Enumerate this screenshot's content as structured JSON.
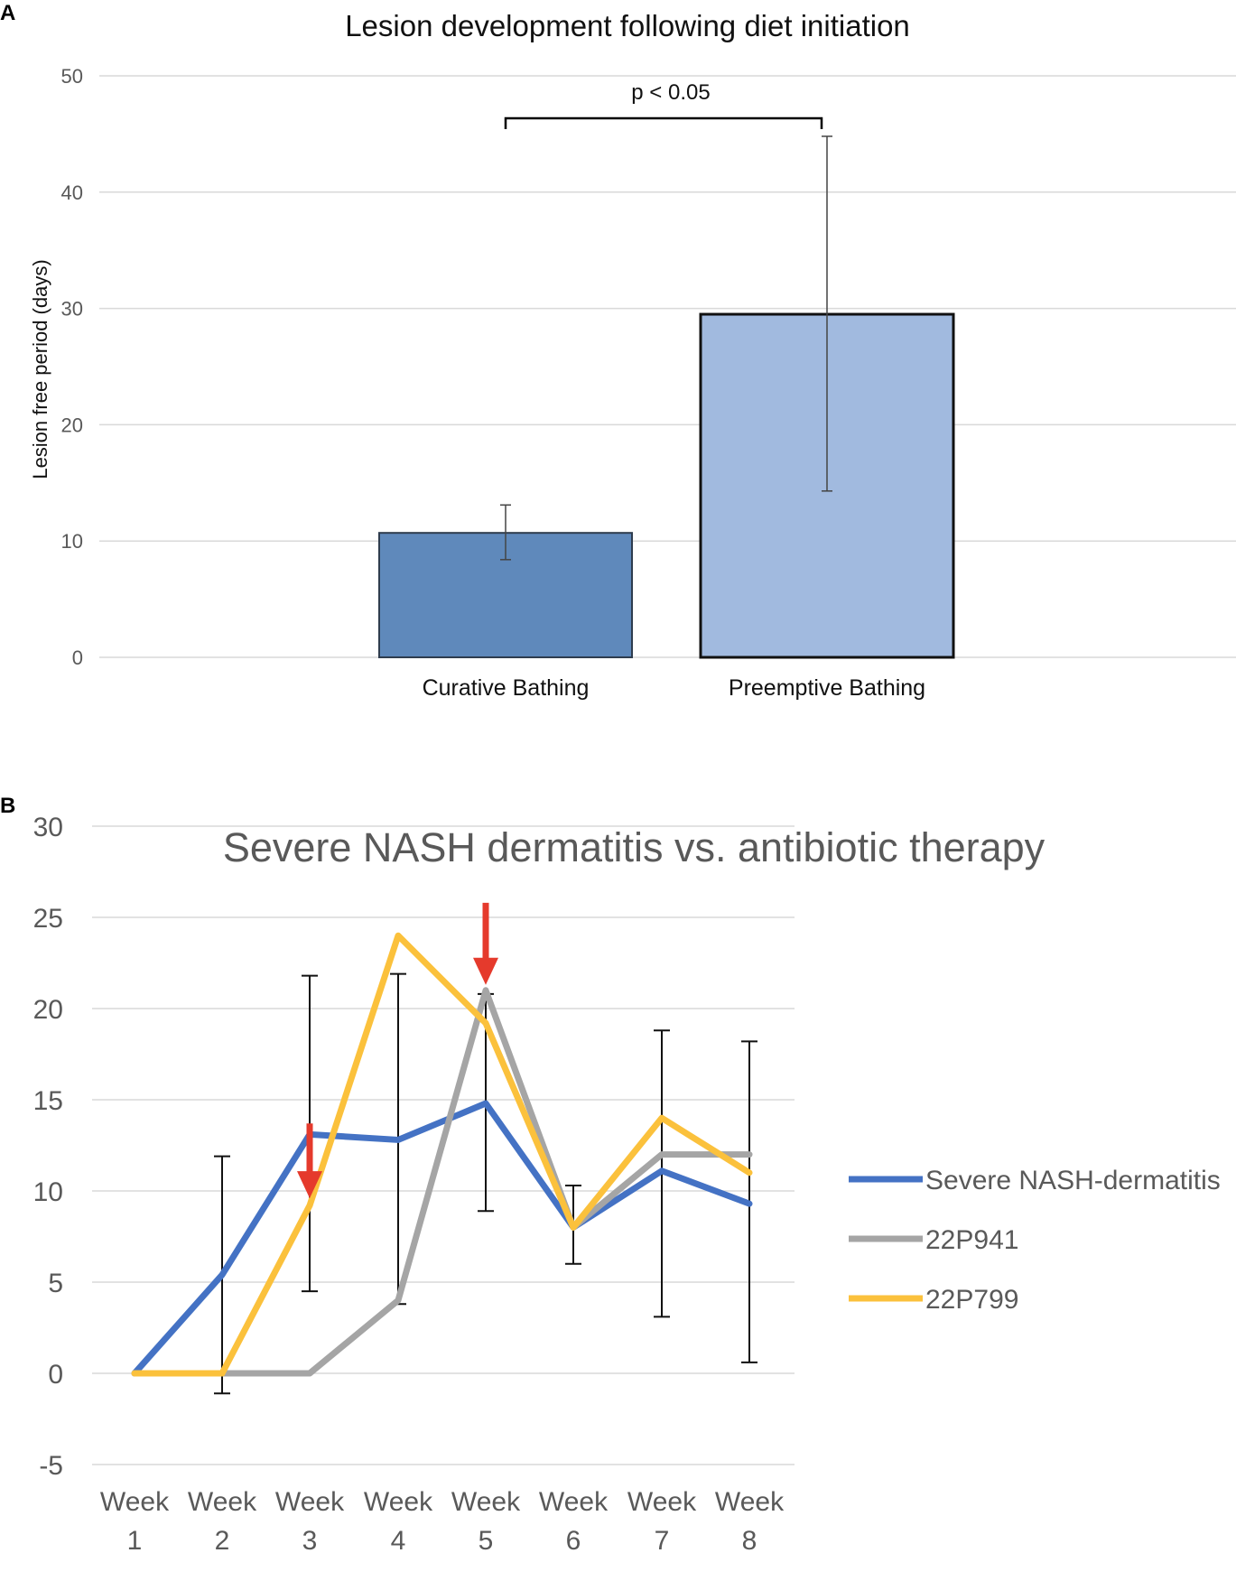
{
  "panels": {
    "a": {
      "letter": "A"
    },
    "b": {
      "letter": "B"
    }
  },
  "chart_data": [
    {
      "type": "bar",
      "title": "Lesion development following diet initiation",
      "xlabel": "",
      "ylabel": "Lesion free period (days)",
      "ylim": [
        0,
        50
      ],
      "yticks": [
        0,
        10,
        20,
        30,
        40,
        50
      ],
      "grid": true,
      "categories": [
        "Curative Bathing",
        "Preemptive Bathing"
      ],
      "values": [
        10.7,
        29.5
      ],
      "error": [
        [
          8.4,
          13.1
        ],
        [
          14.3,
          44.8
        ]
      ],
      "colors": [
        "#5f89bb",
        "#a1badf"
      ],
      "annotation": {
        "text": "p < 0.05",
        "between": [
          0,
          1
        ]
      }
    },
    {
      "type": "line",
      "title": "Severe NASH dermatitis vs. antibiotic therapy",
      "xlabel": "",
      "ylabel": "",
      "ylim": [
        -5,
        30
      ],
      "yticks": [
        -5,
        0,
        5,
        10,
        15,
        20,
        25,
        30
      ],
      "grid": true,
      "legend": "right",
      "categories": [
        [
          "Week",
          "1"
        ],
        [
          "Week",
          "2"
        ],
        [
          "Week",
          "3"
        ],
        [
          "Week",
          "4"
        ],
        [
          "Week",
          "5"
        ],
        [
          "Week",
          "6"
        ],
        [
          "Week",
          "7"
        ],
        [
          "Week",
          "8"
        ]
      ],
      "series": [
        {
          "name": "Severe NASH-dermatitis",
          "color": "#4472c4",
          "values": [
            0,
            5.4,
            13.1,
            12.8,
            14.8,
            8.0,
            11.1,
            9.3
          ],
          "error": [
            null,
            [
              -1.1,
              11.9
            ],
            [
              4.5,
              21.8
            ],
            [
              3.8,
              21.9
            ],
            [
              8.9,
              20.8
            ],
            [
              6.0,
              10.3
            ],
            [
              3.1,
              18.8
            ],
            [
              0.6,
              18.2
            ]
          ]
        },
        {
          "name": "22P941",
          "color": "#a5a5a5",
          "values": [
            0,
            0,
            0,
            4.0,
            21.0,
            8.0,
            12.0,
            12.0
          ]
        },
        {
          "name": "22P799",
          "color": "#fbc13c",
          "values": [
            0,
            0,
            9.2,
            24.0,
            19.2,
            8.0,
            14.0,
            11.0
          ]
        }
      ],
      "arrows": [
        {
          "x": 2,
          "y_top": 13.7,
          "y_tip": 9.6,
          "color": "#e53a2c"
        },
        {
          "x": 4,
          "y_top": 25.8,
          "y_tip": 21.3,
          "color": "#e53a2c"
        }
      ]
    }
  ]
}
